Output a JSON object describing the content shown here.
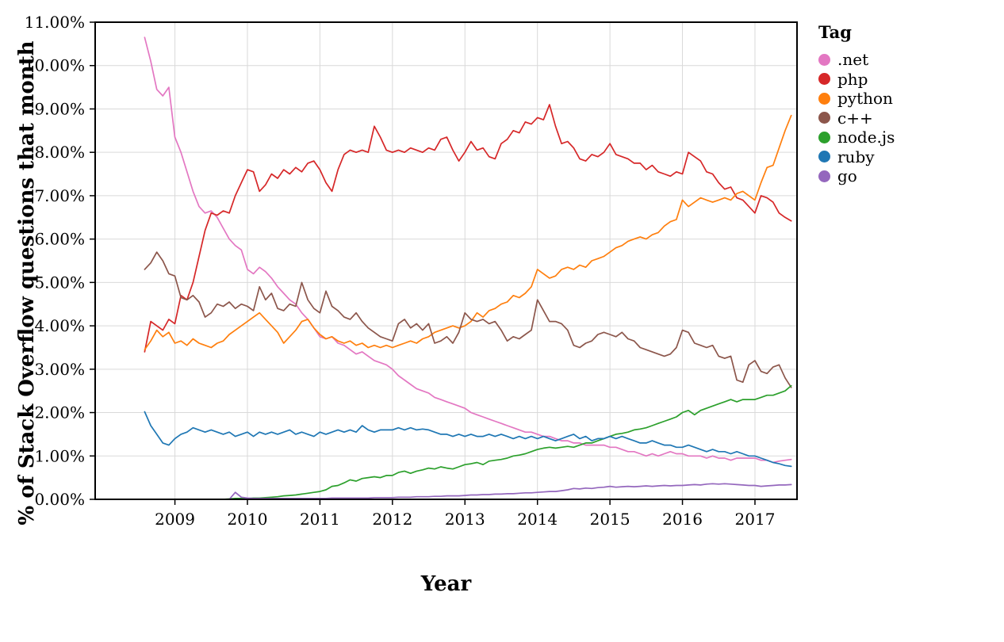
{
  "page": {
    "background": "#ffffff"
  },
  "chart_data": {
    "type": "line",
    "title": "",
    "xlabel": "Year",
    "ylabel": "% of Stack Overflow questions that month",
    "legend": {
      "title": "Tag",
      "position": "right"
    },
    "grid": true,
    "grid_color": "#d9d9d9",
    "axis_color": "#000000",
    "xlim": [
      2007.9,
      2017.58
    ],
    "ylim": [
      0,
      11
    ],
    "x_ticks": [
      2009,
      2010,
      2011,
      2012,
      2013,
      2014,
      2015,
      2016,
      2017
    ],
    "y_ticks": [
      0,
      1,
      2,
      3,
      4,
      5,
      6,
      7,
      8,
      9,
      10,
      11
    ],
    "y_tick_decimals": 2,
    "y_tick_suffix": "%",
    "x_start": 2008.583,
    "x_step": 0.0833333,
    "x_unit": "monthly from Aug 2008 to Jul 2017",
    "series": [
      {
        "name": ".net",
        "color": "#e377c2",
        "values": [
          10.65,
          10.1,
          9.45,
          9.3,
          9.5,
          8.35,
          8.0,
          7.55,
          7.1,
          6.75,
          6.6,
          6.65,
          6.5,
          6.25,
          6.0,
          5.85,
          5.75,
          5.3,
          5.2,
          5.35,
          5.25,
          5.1,
          4.9,
          4.75,
          4.6,
          4.5,
          4.3,
          4.15,
          3.95,
          3.75,
          3.7,
          3.75,
          3.6,
          3.55,
          3.45,
          3.35,
          3.4,
          3.3,
          3.2,
          3.15,
          3.1,
          3.0,
          2.85,
          2.75,
          2.65,
          2.55,
          2.5,
          2.45,
          2.35,
          2.3,
          2.25,
          2.2,
          2.15,
          2.1,
          2.0,
          1.95,
          1.9,
          1.85,
          1.8,
          1.75,
          1.7,
          1.65,
          1.6,
          1.55,
          1.55,
          1.5,
          1.45,
          1.45,
          1.4,
          1.35,
          1.35,
          1.3,
          1.3,
          1.25,
          1.25,
          1.25,
          1.25,
          1.2,
          1.2,
          1.15,
          1.1,
          1.1,
          1.05,
          1.0,
          1.05,
          1.0,
          1.05,
          1.1,
          1.05,
          1.05,
          1.0,
          1.0,
          1.0,
          0.95,
          1.0,
          0.95,
          0.95,
          0.9,
          0.95,
          0.95,
          0.95,
          0.95,
          0.9,
          0.9,
          0.85,
          0.88,
          0.9,
          0.92
        ]
      },
      {
        "name": "php",
        "color": "#d62728",
        "values": [
          3.4,
          4.1,
          4.0,
          3.9,
          4.15,
          4.05,
          4.7,
          4.6,
          5.0,
          5.6,
          6.2,
          6.6,
          6.55,
          6.65,
          6.6,
          7.0,
          7.3,
          7.6,
          7.55,
          7.1,
          7.25,
          7.5,
          7.4,
          7.6,
          7.5,
          7.65,
          7.55,
          7.75,
          7.8,
          7.6,
          7.3,
          7.1,
          7.6,
          7.95,
          8.05,
          8.0,
          8.05,
          8.0,
          8.6,
          8.35,
          8.05,
          8.0,
          8.05,
          8.0,
          8.1,
          8.05,
          8.0,
          8.1,
          8.05,
          8.3,
          8.35,
          8.05,
          7.8,
          8.0,
          8.25,
          8.05,
          8.1,
          7.9,
          7.85,
          8.2,
          8.3,
          8.5,
          8.45,
          8.7,
          8.65,
          8.8,
          8.75,
          9.1,
          8.6,
          8.2,
          8.25,
          8.1,
          7.85,
          7.8,
          7.95,
          7.9,
          8.0,
          8.2,
          7.95,
          7.9,
          7.85,
          7.75,
          7.75,
          7.6,
          7.7,
          7.55,
          7.5,
          7.45,
          7.55,
          7.5,
          8.0,
          7.9,
          7.8,
          7.55,
          7.5,
          7.3,
          7.15,
          7.2,
          6.95,
          6.9,
          6.75,
          6.6,
          7.0,
          6.95,
          6.85,
          6.6,
          6.5,
          6.42
        ]
      },
      {
        "name": "python",
        "color": "#ff7f0e",
        "values": [
          3.45,
          3.65,
          3.9,
          3.75,
          3.85,
          3.6,
          3.65,
          3.55,
          3.7,
          3.6,
          3.55,
          3.5,
          3.6,
          3.65,
          3.8,
          3.9,
          4.0,
          4.1,
          4.2,
          4.3,
          4.15,
          4.0,
          3.85,
          3.6,
          3.75,
          3.9,
          4.1,
          4.15,
          3.95,
          3.8,
          3.7,
          3.75,
          3.65,
          3.6,
          3.65,
          3.55,
          3.6,
          3.5,
          3.55,
          3.5,
          3.55,
          3.5,
          3.55,
          3.6,
          3.65,
          3.6,
          3.7,
          3.75,
          3.85,
          3.9,
          3.95,
          4.0,
          3.95,
          4.0,
          4.1,
          4.3,
          4.2,
          4.35,
          4.4,
          4.5,
          4.55,
          4.7,
          4.65,
          4.75,
          4.9,
          5.3,
          5.2,
          5.1,
          5.15,
          5.3,
          5.35,
          5.3,
          5.4,
          5.35,
          5.5,
          5.55,
          5.6,
          5.7,
          5.8,
          5.85,
          5.95,
          6.0,
          6.05,
          6.0,
          6.1,
          6.15,
          6.3,
          6.4,
          6.45,
          6.9,
          6.75,
          6.85,
          6.95,
          6.9,
          6.85,
          6.9,
          6.95,
          6.9,
          7.05,
          7.1,
          7.0,
          6.9,
          7.3,
          7.65,
          7.7,
          8.1,
          8.5,
          8.85
        ]
      },
      {
        "name": "c++",
        "color": "#8c564b",
        "values": [
          5.3,
          5.45,
          5.7,
          5.5,
          5.2,
          5.15,
          4.65,
          4.6,
          4.7,
          4.55,
          4.2,
          4.3,
          4.5,
          4.45,
          4.55,
          4.4,
          4.5,
          4.45,
          4.35,
          4.9,
          4.6,
          4.75,
          4.4,
          4.35,
          4.5,
          4.45,
          5.0,
          4.6,
          4.4,
          4.3,
          4.8,
          4.45,
          4.35,
          4.2,
          4.15,
          4.3,
          4.1,
          3.95,
          3.85,
          3.75,
          3.7,
          3.65,
          4.05,
          4.15,
          3.95,
          4.05,
          3.9,
          4.05,
          3.6,
          3.65,
          3.75,
          3.6,
          3.85,
          4.3,
          4.15,
          4.1,
          4.15,
          4.05,
          4.1,
          3.9,
          3.65,
          3.75,
          3.7,
          3.8,
          3.9,
          4.6,
          4.35,
          4.1,
          4.1,
          4.05,
          3.9,
          3.55,
          3.5,
          3.6,
          3.65,
          3.8,
          3.85,
          3.8,
          3.75,
          3.85,
          3.7,
          3.65,
          3.5,
          3.45,
          3.4,
          3.35,
          3.3,
          3.35,
          3.5,
          3.9,
          3.85,
          3.6,
          3.55,
          3.5,
          3.55,
          3.3,
          3.25,
          3.3,
          2.75,
          2.7,
          3.1,
          3.2,
          2.95,
          2.9,
          3.05,
          3.1,
          2.8,
          2.58
        ]
      },
      {
        "name": "node.js",
        "color": "#2ca02c",
        "values": [
          0,
          0,
          0,
          0,
          0,
          0,
          0,
          0,
          0,
          0,
          0,
          0,
          0,
          0,
          0.01,
          0.02,
          0.02,
          0.02,
          0.03,
          0.03,
          0.04,
          0.05,
          0.06,
          0.08,
          0.09,
          0.1,
          0.12,
          0.14,
          0.16,
          0.18,
          0.22,
          0.3,
          0.32,
          0.38,
          0.45,
          0.42,
          0.48,
          0.5,
          0.52,
          0.5,
          0.55,
          0.55,
          0.62,
          0.65,
          0.6,
          0.65,
          0.68,
          0.72,
          0.7,
          0.75,
          0.72,
          0.7,
          0.75,
          0.8,
          0.82,
          0.85,
          0.8,
          0.88,
          0.9,
          0.92,
          0.95,
          1.0,
          1.02,
          1.05,
          1.1,
          1.15,
          1.18,
          1.2,
          1.18,
          1.2,
          1.22,
          1.2,
          1.25,
          1.3,
          1.3,
          1.35,
          1.4,
          1.45,
          1.5,
          1.52,
          1.55,
          1.6,
          1.62,
          1.65,
          1.7,
          1.75,
          1.8,
          1.85,
          1.9,
          2.0,
          2.05,
          1.95,
          2.05,
          2.1,
          2.15,
          2.2,
          2.25,
          2.3,
          2.25,
          2.3,
          2.3,
          2.3,
          2.35,
          2.4,
          2.4,
          2.45,
          2.5,
          2.62
        ]
      },
      {
        "name": "ruby",
        "color": "#1f77b4",
        "values": [
          2.02,
          1.7,
          1.5,
          1.3,
          1.25,
          1.4,
          1.5,
          1.55,
          1.65,
          1.6,
          1.55,
          1.6,
          1.55,
          1.5,
          1.55,
          1.45,
          1.5,
          1.55,
          1.45,
          1.55,
          1.5,
          1.55,
          1.5,
          1.55,
          1.6,
          1.5,
          1.55,
          1.5,
          1.45,
          1.55,
          1.5,
          1.55,
          1.6,
          1.55,
          1.6,
          1.55,
          1.7,
          1.6,
          1.55,
          1.6,
          1.6,
          1.6,
          1.65,
          1.6,
          1.65,
          1.6,
          1.62,
          1.6,
          1.55,
          1.5,
          1.5,
          1.45,
          1.5,
          1.45,
          1.5,
          1.45,
          1.45,
          1.5,
          1.45,
          1.5,
          1.45,
          1.4,
          1.45,
          1.4,
          1.45,
          1.4,
          1.45,
          1.4,
          1.35,
          1.4,
          1.45,
          1.5,
          1.4,
          1.45,
          1.35,
          1.4,
          1.4,
          1.45,
          1.4,
          1.45,
          1.4,
          1.35,
          1.3,
          1.3,
          1.35,
          1.3,
          1.25,
          1.25,
          1.2,
          1.2,
          1.25,
          1.2,
          1.15,
          1.1,
          1.15,
          1.1,
          1.1,
          1.05,
          1.1,
          1.05,
          1.0,
          1.0,
          0.95,
          0.9,
          0.85,
          0.82,
          0.78,
          0.76
        ]
      },
      {
        "name": "go",
        "color": "#9467bd",
        "values": [
          0,
          0,
          0,
          0,
          0,
          0,
          0,
          0,
          0,
          0,
          0,
          0,
          0,
          0,
          0,
          0.16,
          0.05,
          0.03,
          0.02,
          0.02,
          0.02,
          0.02,
          0.02,
          0.02,
          0.02,
          0.02,
          0.02,
          0.02,
          0.02,
          0.02,
          0.02,
          0.03,
          0.03,
          0.03,
          0.03,
          0.03,
          0.03,
          0.03,
          0.04,
          0.04,
          0.04,
          0.04,
          0.05,
          0.05,
          0.05,
          0.06,
          0.06,
          0.06,
          0.07,
          0.07,
          0.08,
          0.08,
          0.08,
          0.09,
          0.1,
          0.1,
          0.11,
          0.11,
          0.12,
          0.12,
          0.13,
          0.13,
          0.14,
          0.15,
          0.15,
          0.16,
          0.17,
          0.18,
          0.18,
          0.2,
          0.22,
          0.25,
          0.24,
          0.26,
          0.25,
          0.27,
          0.28,
          0.3,
          0.28,
          0.29,
          0.3,
          0.29,
          0.3,
          0.31,
          0.3,
          0.31,
          0.32,
          0.31,
          0.32,
          0.32,
          0.33,
          0.34,
          0.33,
          0.35,
          0.36,
          0.35,
          0.36,
          0.35,
          0.34,
          0.33,
          0.32,
          0.32,
          0.3,
          0.31,
          0.32,
          0.33,
          0.33,
          0.34
        ]
      }
    ]
  }
}
